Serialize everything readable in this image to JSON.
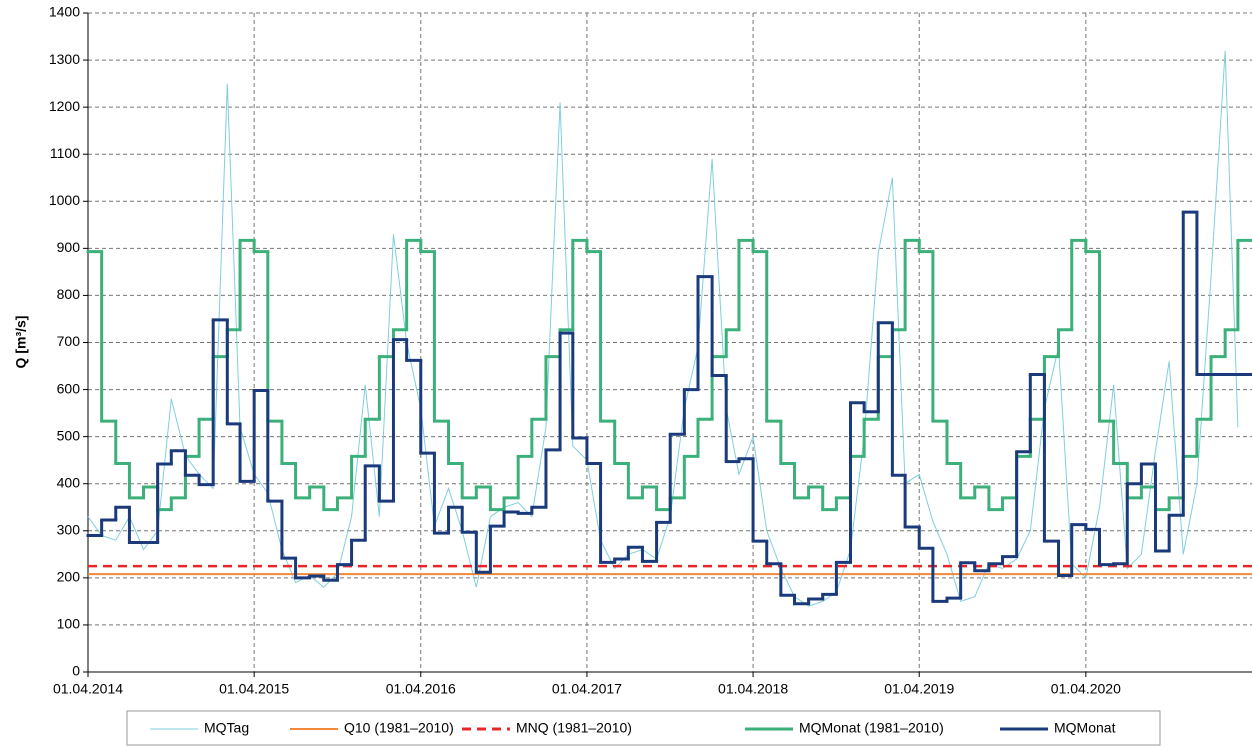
{
  "chart_data": {
    "type": "line",
    "ylabel": "Q [m³/s]",
    "ylim": [
      0,
      1400
    ],
    "yticks": [
      0,
      100,
      200,
      300,
      400,
      500,
      600,
      700,
      800,
      900,
      1000,
      1100,
      1200,
      1300,
      1400
    ],
    "xlim": [
      "2014-04-01",
      "2021-04-01"
    ],
    "xticks": [
      {
        "value": "2014-04-01",
        "label": "01.04.2014"
      },
      {
        "value": "2015-04-01",
        "label": "01.04.2015"
      },
      {
        "value": "2016-04-01",
        "label": "01.04.2016"
      },
      {
        "value": "2017-04-01",
        "label": "01.04.2017"
      },
      {
        "value": "2018-04-01",
        "label": "01.04.2018"
      },
      {
        "value": "2019-04-01",
        "label": "01.04.2019"
      },
      {
        "value": "2020-04-01",
        "label": "01.04.2020"
      }
    ],
    "grid": true,
    "legend": "bottom",
    "x": [
      "2014-04-01",
      "2014-05-01",
      "2014-06-01",
      "2014-07-01",
      "2014-08-01",
      "2014-09-01",
      "2014-10-01",
      "2014-11-01",
      "2014-12-01",
      "2015-01-01",
      "2015-02-01",
      "2015-03-01",
      "2015-04-01",
      "2015-05-01",
      "2015-06-01",
      "2015-07-01",
      "2015-08-01",
      "2015-09-01",
      "2015-10-01",
      "2015-11-01",
      "2015-12-01",
      "2016-01-01",
      "2016-02-01",
      "2016-03-01",
      "2016-04-01",
      "2016-05-01",
      "2016-06-01",
      "2016-07-01",
      "2016-08-01",
      "2016-09-01",
      "2016-10-01",
      "2016-11-01",
      "2016-12-01",
      "2017-01-01",
      "2017-02-01",
      "2017-03-01",
      "2017-04-01",
      "2017-05-01",
      "2017-06-01",
      "2017-07-01",
      "2017-08-01",
      "2017-09-01",
      "2017-10-01",
      "2017-11-01",
      "2017-12-01",
      "2018-01-01",
      "2018-02-01",
      "2018-03-01",
      "2018-04-01",
      "2018-05-01",
      "2018-06-01",
      "2018-07-01",
      "2018-08-01",
      "2018-09-01",
      "2018-10-01",
      "2018-11-01",
      "2018-12-01",
      "2019-01-01",
      "2019-02-01",
      "2019-03-01",
      "2019-04-01",
      "2019-05-01",
      "2019-06-01",
      "2019-07-01",
      "2019-08-01",
      "2019-09-01",
      "2019-10-01",
      "2019-11-01",
      "2019-12-01",
      "2020-01-01",
      "2020-02-01",
      "2020-03-01",
      "2020-04-01",
      "2020-05-01",
      "2020-06-01",
      "2020-07-01",
      "2020-08-01",
      "2020-09-01",
      "2020-10-01",
      "2020-11-01",
      "2020-12-01",
      "2021-01-01",
      "2021-02-01",
      "2021-03-01"
    ],
    "series": [
      {
        "name": "MQTag",
        "color": "#7fcfdc",
        "style": "line",
        "values": [
          330,
          290,
          280,
          330,
          260,
          300,
          580,
          460,
          420,
          390,
          1250,
          520,
          420,
          380,
          260,
          190,
          205,
          180,
          210,
          330,
          610,
          330,
          930,
          700,
          560,
          310,
          390,
          300,
          180,
          330,
          350,
          360,
          330,
          520,
          1210,
          480,
          450,
          280,
          220,
          250,
          260,
          240,
          330,
          560,
          690,
          1090,
          560,
          420,
          500,
          300,
          220,
          160,
          140,
          150,
          170,
          260,
          500,
          890,
          1050,
          400,
          420,
          320,
          250,
          150,
          160,
          230,
          220,
          240,
          300,
          560,
          690,
          230,
          200,
          350,
          610,
          220,
          250,
          470,
          660,
          250,
          400,
          840,
          1320,
          520
        ]
      },
      {
        "name": "Q10 (1981–2010)",
        "color": "#f08a3a",
        "style": "constant",
        "value": 208
      },
      {
        "name": "MNQ (1981–2010)",
        "color": "#e8262a",
        "style": "dashed",
        "value": 225
      },
      {
        "name": "MQMonat (1981–2010)",
        "color": "#3cb07a",
        "style": "step",
        "values": [
          893,
          533,
          443,
          370,
          393,
          345,
          370,
          458,
          537,
          670,
          727,
          917,
          893,
          533,
          443,
          370,
          393,
          345,
          370,
          458,
          537,
          670,
          727,
          917,
          893,
          533,
          443,
          370,
          393,
          345,
          370,
          458,
          537,
          670,
          727,
          917,
          893,
          533,
          443,
          370,
          393,
          345,
          370,
          458,
          537,
          670,
          727,
          917,
          893,
          533,
          443,
          370,
          393,
          345,
          370,
          458,
          537,
          670,
          727,
          917,
          893,
          533,
          443,
          370,
          393,
          345,
          370,
          458,
          537,
          670,
          727,
          917,
          893,
          533,
          443,
          370,
          393,
          345,
          370,
          458,
          537,
          670,
          727,
          917
        ]
      },
      {
        "name": "MQMonat",
        "color": "#1a3a7c",
        "style": "step",
        "values": [
          290,
          323,
          350,
          275,
          275,
          442,
          470,
          418,
          398,
          748,
          527,
          405,
          598,
          363,
          242,
          200,
          204,
          195,
          228,
          280,
          438,
          363,
          706,
          662,
          465,
          295,
          350,
          297,
          212,
          310,
          340,
          337,
          350,
          472,
          720,
          497,
          443,
          233,
          240,
          265,
          235,
          318,
          505,
          600,
          840,
          630,
          447,
          453,
          278,
          230,
          163,
          145,
          155,
          165,
          233,
          572,
          553,
          742,
          418,
          308,
          263,
          150,
          157,
          232,
          215,
          230,
          245,
          468,
          632,
          278,
          205,
          313,
          303,
          228,
          230,
          400,
          442,
          257,
          333,
          977,
          632,
          632,
          632,
          632
        ]
      }
    ]
  }
}
